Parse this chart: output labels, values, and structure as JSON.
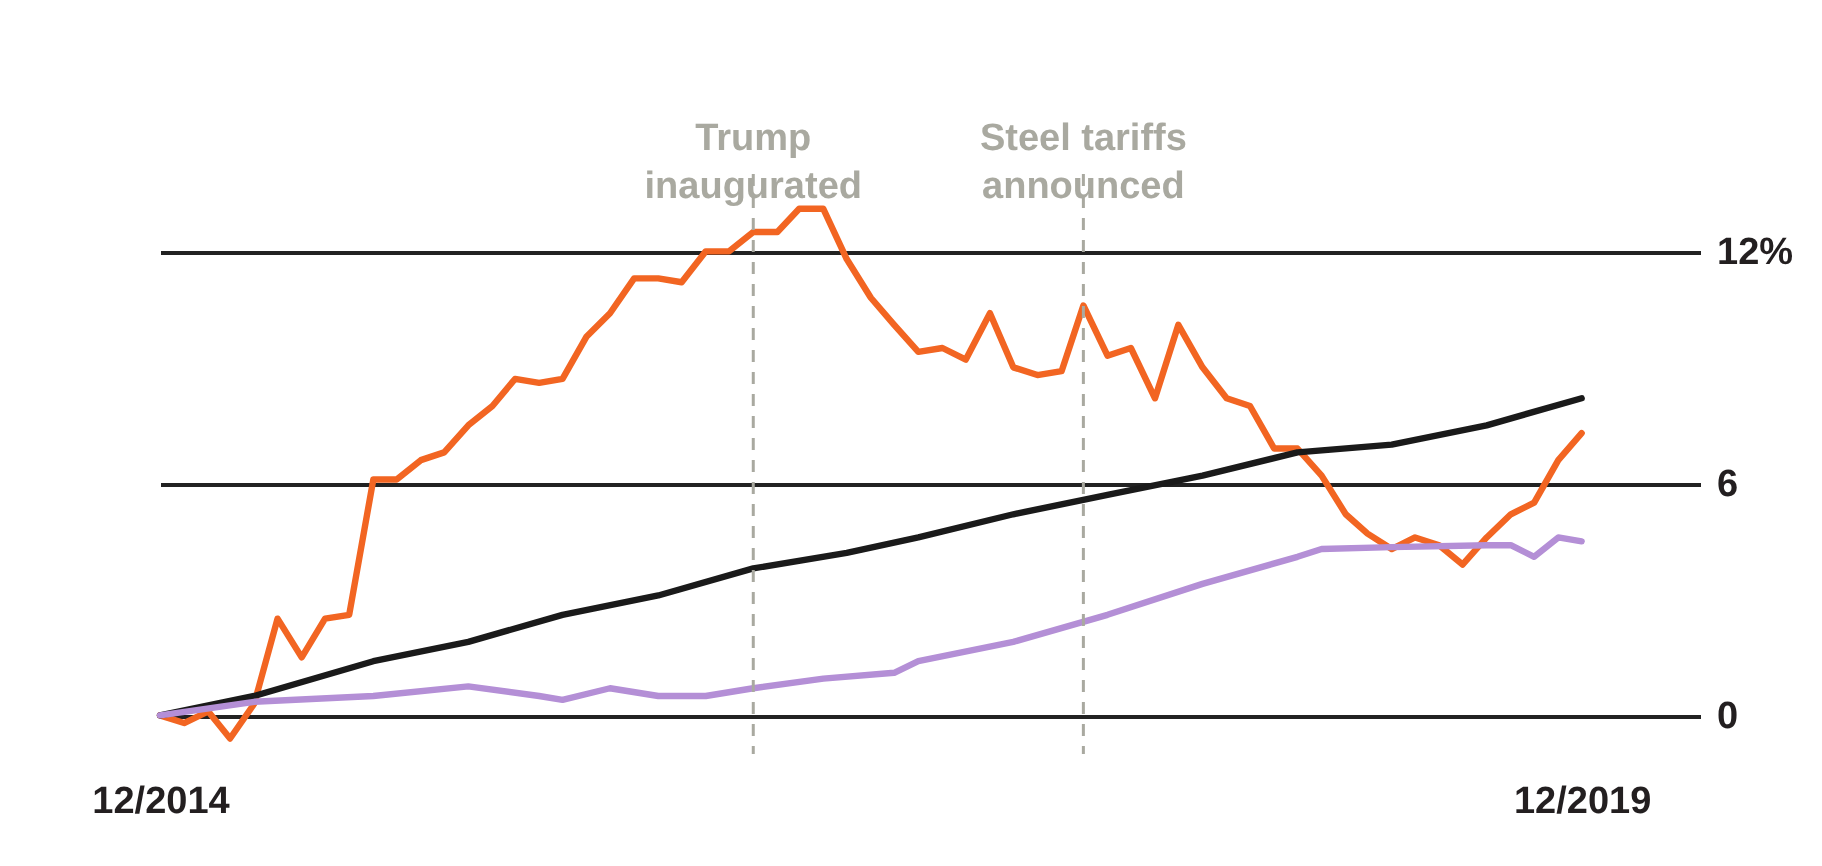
{
  "chart_data": {
    "type": "line",
    "x": [
      "2014-12",
      "2015-01",
      "2015-02",
      "2015-03",
      "2015-04",
      "2015-05",
      "2015-06",
      "2015-07",
      "2015-08",
      "2015-09",
      "2015-10",
      "2015-11",
      "2015-12",
      "2016-01",
      "2016-02",
      "2016-03",
      "2016-04",
      "2016-05",
      "2016-06",
      "2016-07",
      "2016-08",
      "2016-09",
      "2016-10",
      "2016-11",
      "2016-12",
      "2017-01",
      "2017-02",
      "2017-03",
      "2017-04",
      "2017-05",
      "2017-06",
      "2017-07",
      "2017-08",
      "2017-09",
      "2017-10",
      "2017-11",
      "2017-12",
      "2018-01",
      "2018-02",
      "2018-03",
      "2018-04",
      "2018-05",
      "2018-06",
      "2018-07",
      "2018-08",
      "2018-09",
      "2018-10",
      "2018-11",
      "2018-12",
      "2019-01",
      "2019-02",
      "2019-03",
      "2019-04",
      "2019-05",
      "2019-06",
      "2019-07",
      "2019-08",
      "2019-09",
      "2019-10",
      "2019-11",
      "2019-12"
    ],
    "series": [
      {
        "color": "#f26522",
        "values": [
          0.0,
          -0.2,
          0.1,
          -0.6,
          0.3,
          2.5,
          1.5,
          2.5,
          2.6,
          6.1,
          6.1,
          6.6,
          6.8,
          7.5,
          8.0,
          8.7,
          8.6,
          8.7,
          9.8,
          10.4,
          11.3,
          11.3,
          11.2,
          12.0,
          12.0,
          12.5,
          12.5,
          13.1,
          13.1,
          11.8,
          10.8,
          10.1,
          9.4,
          9.5,
          9.2,
          10.4,
          9.0,
          8.8,
          8.9,
          10.6,
          9.3,
          9.5,
          8.2,
          10.1,
          9.0,
          8.2,
          8.0,
          6.9,
          6.9,
          6.2,
          5.2,
          4.7,
          4.3,
          4.6,
          4.4,
          3.9,
          4.6,
          5.2,
          5.5,
          6.6,
          7.3
        ]
      },
      {
        "color": "#1a1a1a",
        "x": [
          "2014-12",
          "2015-04",
          "2015-09",
          "2016-01",
          "2016-05",
          "2016-09",
          "2017-01",
          "2017-05",
          "2017-08",
          "2017-12",
          "2018-04",
          "2018-08",
          "2018-12",
          "2019-04",
          "2019-08",
          "2019-12"
        ],
        "values": [
          0.0,
          0.5,
          1.4,
          1.9,
          2.6,
          3.1,
          3.8,
          4.2,
          4.6,
          5.2,
          5.7,
          6.2,
          6.8,
          7.0,
          7.5,
          8.2
        ]
      },
      {
        "color": "#b48fd6",
        "x": [
          "2014-12",
          "2015-04",
          "2015-09",
          "2016-01",
          "2016-04",
          "2016-05",
          "2016-07",
          "2016-09",
          "2016-11",
          "2017-01",
          "2017-04",
          "2017-07",
          "2017-08",
          "2017-12",
          "2018-04",
          "2018-08",
          "2018-12",
          "2019-01",
          "2019-04",
          "2019-08",
          "2019-09",
          "2019-10",
          "2019-11",
          "2019-12"
        ],
        "values": [
          0.0,
          0.35,
          0.5,
          0.75,
          0.5,
          0.4,
          0.7,
          0.5,
          0.5,
          0.7,
          0.95,
          1.1,
          1.4,
          1.9,
          2.6,
          3.4,
          4.1,
          4.3,
          4.35,
          4.4,
          4.4,
          4.1,
          4.6,
          4.5
        ]
      }
    ],
    "xlim": [
      "2014-12",
      "2020-05"
    ],
    "xticks": [
      {
        "value": "2014-12",
        "label": "12/2014"
      },
      {
        "value": "2019-12",
        "label": "12/2019"
      }
    ],
    "ylim": [
      -1,
      14
    ],
    "yticks": [
      {
        "value": 0,
        "label": "0"
      },
      {
        "value": 6,
        "label": "6"
      },
      {
        "value": 12,
        "label": "12%"
      }
    ],
    "grid": "y",
    "legend": false,
    "line_style": "solid",
    "ref_lines": [
      {
        "axis": "x",
        "value": "2017-01",
        "label": "Trump\ninaugurated",
        "color": "#a9a9a0",
        "line_style": "dashed"
      },
      {
        "axis": "x",
        "value": "2018-03",
        "label": "Steel tariffs\nannounced",
        "color": "#a9a9a0",
        "line_style": "dashed"
      }
    ]
  }
}
